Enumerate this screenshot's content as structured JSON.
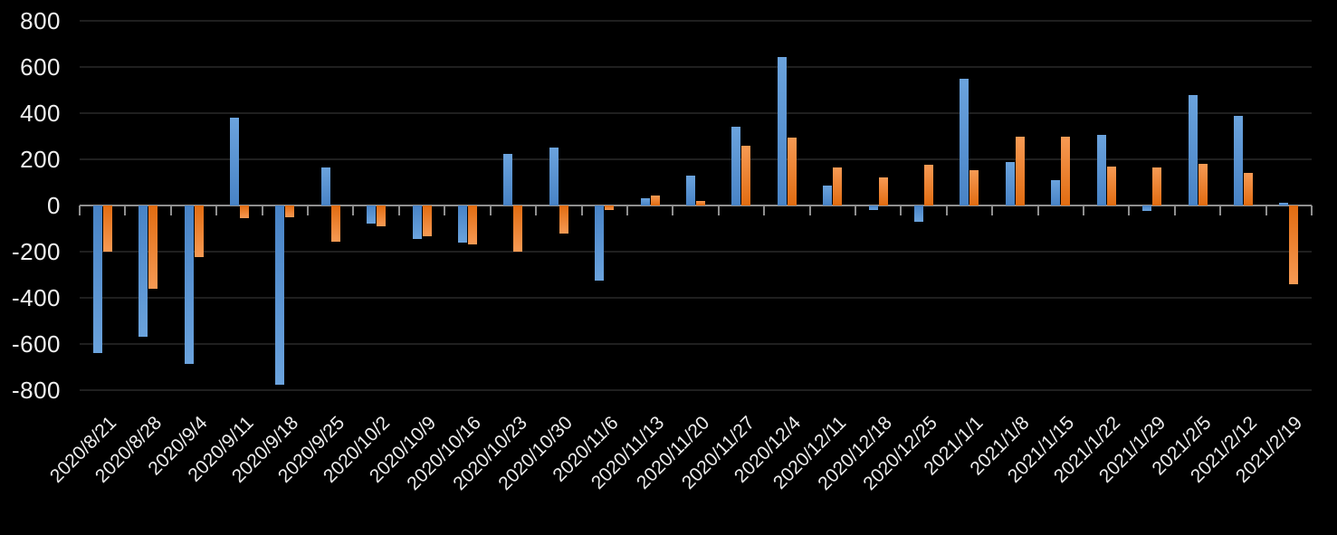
{
  "chart_data": {
    "type": "bar",
    "title": "",
    "legend_position": "none",
    "grid": true,
    "background_color": "#000000",
    "axis_color": "#8f8f8f",
    "gridline_color": "#1f1f1f",
    "tick_label_color": "#f0f0f0",
    "ylim": [
      -800,
      800
    ],
    "y_ticks": [
      800,
      600,
      400,
      200,
      0,
      -200,
      -400,
      -600,
      -800
    ],
    "xlabel": "",
    "ylabel": "",
    "categories": [
      "2020/8/21",
      "2020/8/28",
      "2020/9/4",
      "2020/9/11",
      "2020/9/18",
      "2020/9/25",
      "2020/10/2",
      "2020/10/9",
      "2020/10/16",
      "2020/10/23",
      "2020/10/30",
      "2020/11/6",
      "2020/11/13",
      "2020/11/20",
      "2020/11/27",
      "2020/12/4",
      "2020/12/11",
      "2020/12/18",
      "2020/12/25",
      "2021/1/1",
      "2021/1/8",
      "2021/1/15",
      "2021/1/22",
      "2021/1/29",
      "2021/2/5",
      "2021/2/12",
      "2021/2/19"
    ],
    "series": [
      {
        "name": "blue_series",
        "color": "#5b9bd5",
        "values": [
          -640,
          -570,
          -685,
          380,
          -775,
          165,
          -80,
          -145,
          -160,
          225,
          250,
          -325,
          30,
          130,
          340,
          645,
          85,
          -20,
          -70,
          550,
          190,
          110,
          305,
          -25,
          480,
          390,
          10
        ]
      },
      {
        "name": "orange_series",
        "color": "#ed7d31",
        "values": [
          -200,
          -360,
          -225,
          -55,
          -50,
          -155,
          -90,
          -135,
          -170,
          -200,
          -120,
          -20,
          45,
          20,
          260,
          295,
          165,
          120,
          175,
          155,
          300,
          300,
          170,
          165,
          180,
          140,
          -340
        ]
      }
    ]
  }
}
